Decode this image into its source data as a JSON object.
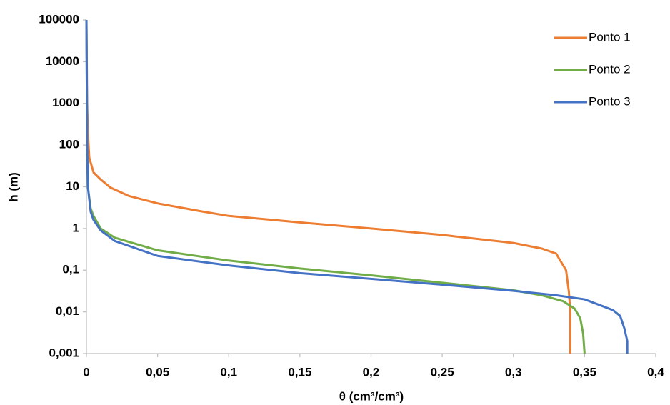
{
  "chart_data": {
    "type": "line",
    "x_label": "θ (cm³/cm³)",
    "y_label": "h (m)",
    "xlim": [
      0,
      0.4
    ],
    "xticks": [
      0,
      {
        "value": 0.05,
        "label": "0,05"
      },
      {
        "value": 0.1,
        "label": "0,1"
      },
      {
        "value": 0.15,
        "label": "0,15"
      },
      {
        "value": 0.2,
        "label": "0,2"
      },
      {
        "value": 0.25,
        "label": "0,25"
      },
      {
        "value": 0.3,
        "label": "0,3"
      },
      {
        "value": 0.35,
        "label": "0,35"
      },
      {
        "value": 0.4,
        "label": "0,4"
      }
    ],
    "ylim": [
      0.001,
      100000
    ],
    "y_scale": "log",
    "yticks": [
      {
        "value": 0.001,
        "label": "0,001"
      },
      {
        "value": 0.01,
        "label": "0,01"
      },
      {
        "value": 0.1,
        "label": "0,1"
      },
      1,
      10,
      100,
      1000,
      10000,
      100000
    ],
    "grid": false,
    "legend": "top-right",
    "series": [
      {
        "name": "Ponto 1",
        "color": "#ED7D31",
        "x": [
          0,
          0.0005,
          0.001,
          0.002,
          0.005,
          0.01,
          0.017,
          0.03,
          0.05,
          0.08,
          0.1,
          0.15,
          0.2,
          0.25,
          0.3,
          0.32,
          0.33,
          0.337,
          0.339,
          0.34,
          0.34
        ],
        "values": [
          100000,
          1000,
          200,
          50,
          22,
          15,
          9.5,
          6,
          4,
          2.6,
          2,
          1.4,
          1,
          0.7,
          0.45,
          0.33,
          0.25,
          0.1,
          0.03,
          0.01,
          0.001
        ]
      },
      {
        "name": "Ponto 2",
        "color": "#70AD47",
        "x": [
          0,
          0.0005,
          0.001,
          0.003,
          0.005,
          0.01,
          0.02,
          0.05,
          0.1,
          0.15,
          0.2,
          0.25,
          0.3,
          0.32,
          0.335,
          0.343,
          0.347,
          0.349,
          0.35
        ],
        "values": [
          100000,
          100,
          10,
          3,
          2,
          1,
          0.6,
          0.3,
          0.17,
          0.11,
          0.075,
          0.05,
          0.033,
          0.025,
          0.018,
          0.012,
          0.007,
          0.003,
          0.001
        ]
      },
      {
        "name": "Ponto 3",
        "color": "#4472C4",
        "x": [
          0,
          0.0005,
          0.001,
          0.003,
          0.005,
          0.01,
          0.02,
          0.05,
          0.1,
          0.15,
          0.2,
          0.25,
          0.3,
          0.33,
          0.35,
          0.37,
          0.375,
          0.378,
          0.38,
          0.38
        ],
        "values": [
          100000,
          100,
          10,
          2.5,
          1.6,
          0.9,
          0.5,
          0.22,
          0.13,
          0.085,
          0.062,
          0.045,
          0.032,
          0.025,
          0.02,
          0.011,
          0.008,
          0.004,
          0.002,
          0.001
        ]
      }
    ]
  }
}
